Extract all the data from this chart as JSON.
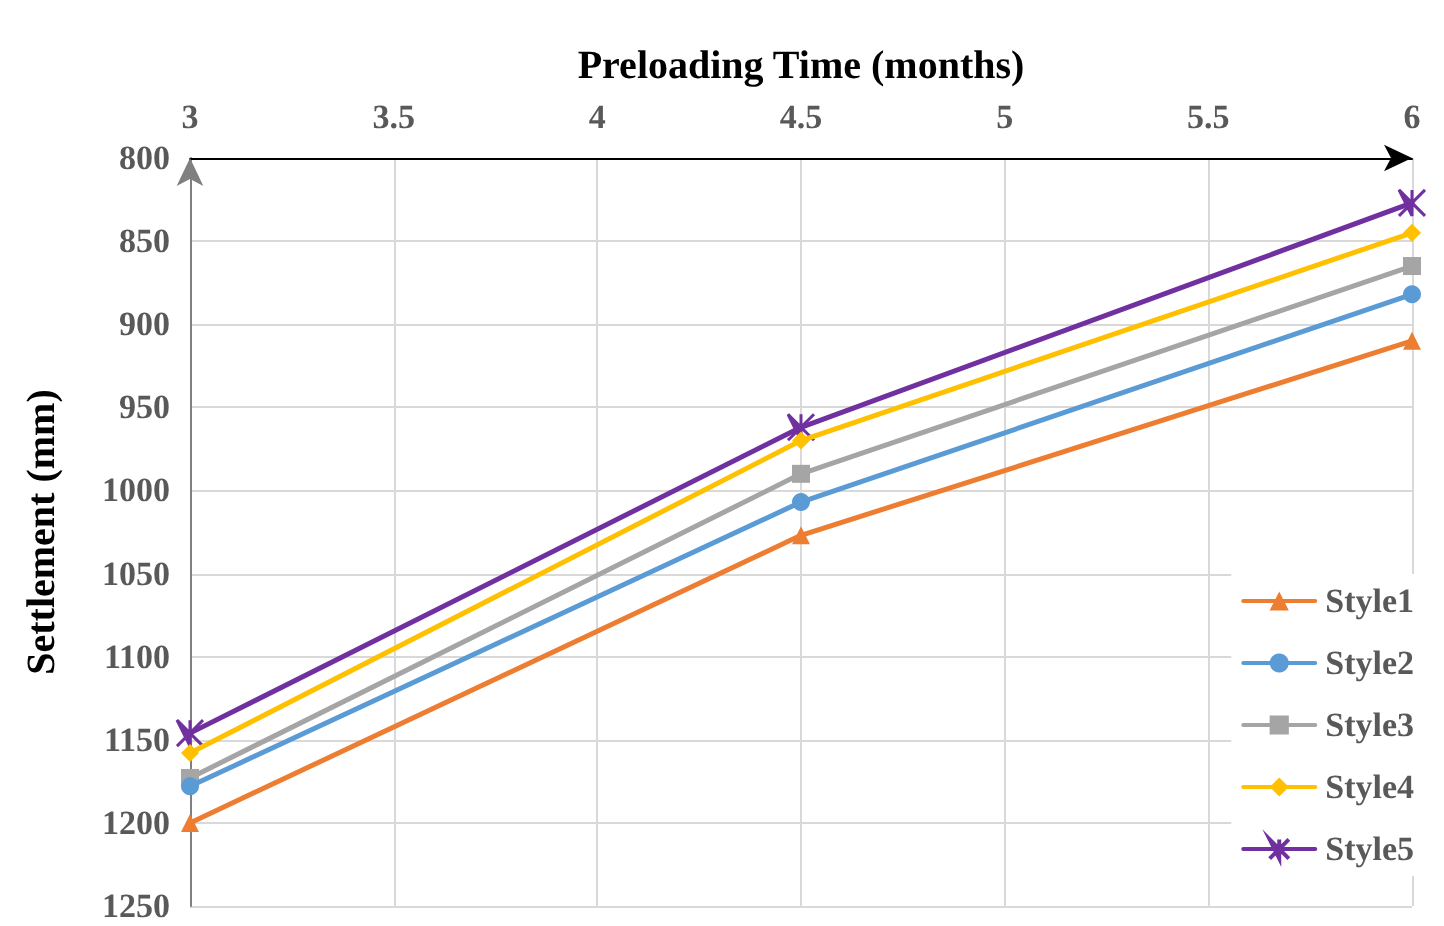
{
  "chart_data": {
    "type": "line",
    "xlabel": "Preloading Time (months)",
    "ylabel": "Settlement (mm)",
    "x": [
      3,
      4.5,
      6
    ],
    "xlim": [
      3,
      6
    ],
    "xticks": [
      3,
      3.5,
      4,
      4.5,
      5,
      5.5,
      6
    ],
    "ylim": [
      1250,
      800
    ],
    "yticks": [
      800,
      850,
      900,
      950,
      1000,
      1050,
      1100,
      1150,
      1200,
      1250
    ],
    "grid": true,
    "legend": "bottom right",
    "line_style": "solid",
    "series": [
      {
        "name": "Style1",
        "color": "#ed7d31",
        "marker": "triangle",
        "values": [
          1200,
          1027,
          910
        ]
      },
      {
        "name": "Style2",
        "color": "#5b9bd5",
        "marker": "circle",
        "values": [
          1178,
          1007,
          882
        ]
      },
      {
        "name": "Style3",
        "color": "#a5a5a5",
        "marker": "square",
        "values": [
          1173,
          990,
          865
        ]
      },
      {
        "name": "Style4",
        "color": "#ffc000",
        "marker": "diamond",
        "values": [
          1158,
          970,
          845
        ]
      },
      {
        "name": "Style5",
        "color": "#7030a0",
        "marker": "cross",
        "values": [
          1146,
          962,
          827
        ]
      }
    ]
  }
}
